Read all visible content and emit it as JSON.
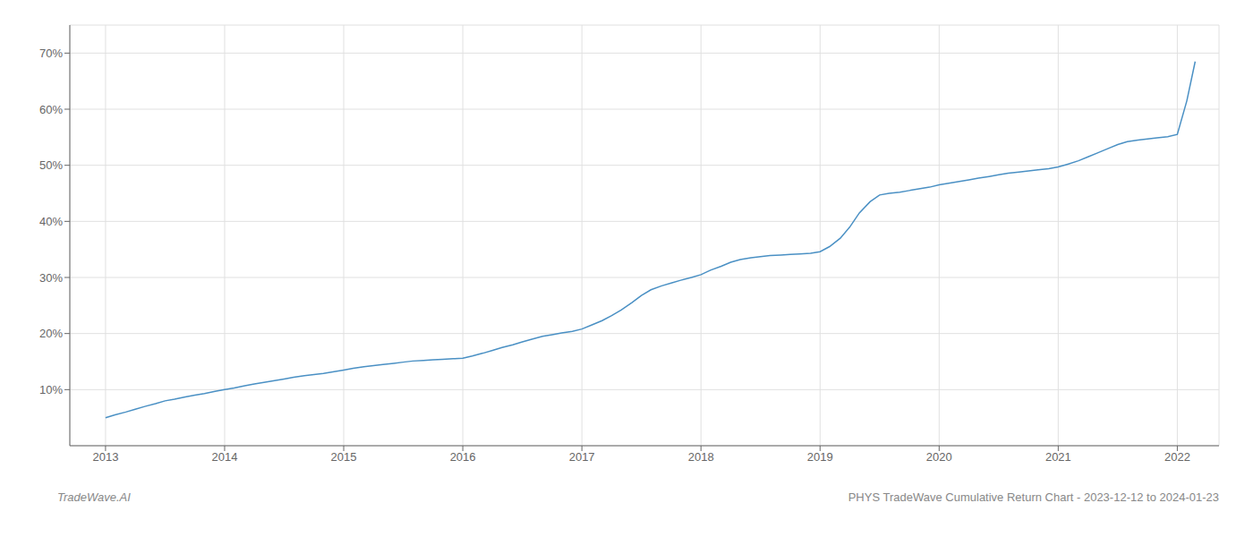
{
  "chart_data": {
    "type": "line",
    "title": "PHYS TradeWave Cumulative Return Chart - 2023-12-12 to 2024-01-23",
    "annotations": [
      "TradeWave.AI"
    ],
    "color": "#4a90c4",
    "grid": true,
    "xlim": [
      2012.7,
      2022.35
    ],
    "xticks": [
      2013,
      2014,
      2015,
      2016,
      2017,
      2018,
      2019,
      2020,
      2021,
      2022
    ],
    "ylim": [
      0.0,
      0.75
    ],
    "yticks": [
      {
        "value": 0.1,
        "label": "10%"
      },
      {
        "value": 0.2,
        "label": "20%"
      },
      {
        "value": 0.3,
        "label": "30%"
      },
      {
        "value": 0.4,
        "label": "40%"
      },
      {
        "value": 0.5,
        "label": "50%"
      },
      {
        "value": 0.6,
        "label": "60%"
      },
      {
        "value": 0.7,
        "label": "70%"
      }
    ],
    "x": [
      2013.0,
      2013.08,
      2013.17,
      2013.25,
      2013.33,
      2013.42,
      2013.5,
      2013.58,
      2013.67,
      2013.75,
      2013.83,
      2013.92,
      2014.0,
      2014.08,
      2014.17,
      2014.25,
      2014.33,
      2014.42,
      2014.5,
      2014.58,
      2014.67,
      2014.75,
      2014.83,
      2014.92,
      2015.0,
      2015.08,
      2015.17,
      2015.25,
      2015.33,
      2015.42,
      2015.5,
      2015.58,
      2015.67,
      2015.75,
      2015.83,
      2015.92,
      2016.0,
      2016.08,
      2016.17,
      2016.25,
      2016.33,
      2016.42,
      2016.5,
      2016.58,
      2016.67,
      2016.75,
      2016.83,
      2016.92,
      2017.0,
      2017.08,
      2017.17,
      2017.25,
      2017.33,
      2017.42,
      2017.5,
      2017.58,
      2017.67,
      2017.75,
      2017.83,
      2017.92,
      2018.0,
      2018.08,
      2018.17,
      2018.25,
      2018.33,
      2018.42,
      2018.5,
      2018.58,
      2018.67,
      2018.75,
      2018.83,
      2018.92,
      2019.0,
      2019.08,
      2019.17,
      2019.25,
      2019.33,
      2019.42,
      2019.5,
      2019.58,
      2019.67,
      2019.75,
      2019.83,
      2019.92,
      2020.0,
      2020.08,
      2020.17,
      2020.25,
      2020.33,
      2020.42,
      2020.5,
      2020.58,
      2020.67,
      2020.75,
      2020.83,
      2020.92,
      2021.0,
      2021.08,
      2021.17,
      2021.25,
      2021.33,
      2021.42,
      2021.5,
      2021.58,
      2021.67,
      2021.75,
      2021.83,
      2021.92,
      2022.0,
      2022.08,
      2022.15
    ],
    "values": [
      0.05,
      0.055,
      0.06,
      0.065,
      0.07,
      0.075,
      0.08,
      0.083,
      0.087,
      0.09,
      0.093,
      0.097,
      0.1,
      0.103,
      0.107,
      0.11,
      0.113,
      0.116,
      0.119,
      0.122,
      0.125,
      0.127,
      0.129,
      0.132,
      0.135,
      0.138,
      0.141,
      0.143,
      0.145,
      0.147,
      0.149,
      0.151,
      0.152,
      0.153,
      0.154,
      0.155,
      0.156,
      0.16,
      0.165,
      0.17,
      0.175,
      0.18,
      0.185,
      0.19,
      0.195,
      0.198,
      0.201,
      0.204,
      0.208,
      0.215,
      0.223,
      0.232,
      0.242,
      0.255,
      0.268,
      0.278,
      0.285,
      0.29,
      0.295,
      0.3,
      0.305,
      0.313,
      0.32,
      0.327,
      0.332,
      0.335,
      0.337,
      0.339,
      0.34,
      0.341,
      0.342,
      0.343,
      0.346,
      0.355,
      0.37,
      0.39,
      0.415,
      0.435,
      0.447,
      0.45,
      0.452,
      0.455,
      0.458,
      0.461,
      0.465,
      0.468,
      0.471,
      0.474,
      0.477,
      0.48,
      0.483,
      0.486,
      0.488,
      0.49,
      0.492,
      0.494,
      0.497,
      0.502,
      0.508,
      0.515,
      0.522,
      0.53,
      0.537,
      0.542,
      0.545,
      0.547,
      0.549,
      0.551,
      0.555,
      0.615,
      0.685
    ]
  }
}
